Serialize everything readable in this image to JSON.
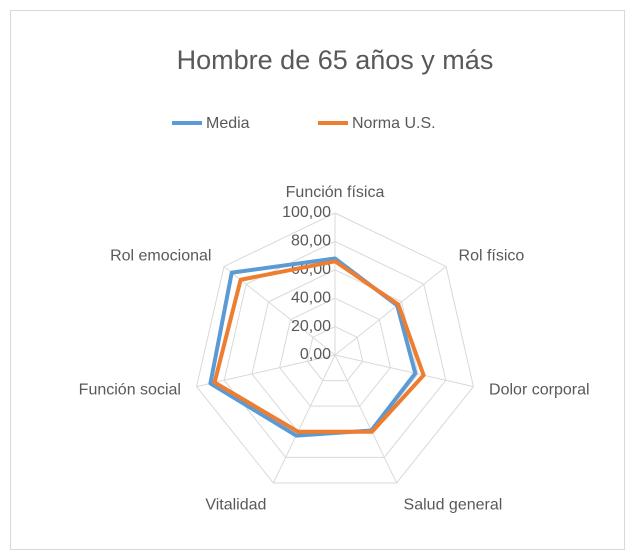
{
  "chart_data": {
    "type": "radar",
    "title": "Hombre de 65 años y más",
    "categories": [
      "Función física",
      "Rol físico",
      "Dolor corporal",
      "Salud general",
      "Vitalidad",
      "Función social",
      "Rol emocional"
    ],
    "series": [
      {
        "name": "Media",
        "color": "#5b9bd5",
        "values": [
          68,
          56,
          58,
          59,
          63,
          90,
          93
        ]
      },
      {
        "name": "Norma U.S.",
        "color": "#ed7d31",
        "values": [
          66,
          57,
          64,
          60,
          60,
          87,
          85
        ]
      }
    ],
    "ylim": [
      0,
      100
    ],
    "yticks": [
      {
        "value": 0,
        "label": "0,00"
      },
      {
        "value": 20,
        "label": "20,00"
      },
      {
        "value": 40,
        "label": "40,00"
      },
      {
        "value": 60,
        "label": "60,00"
      },
      {
        "value": 80,
        "label": "80,00"
      },
      {
        "value": 100,
        "label": "100,00"
      }
    ],
    "grid": true,
    "legend": "top"
  }
}
